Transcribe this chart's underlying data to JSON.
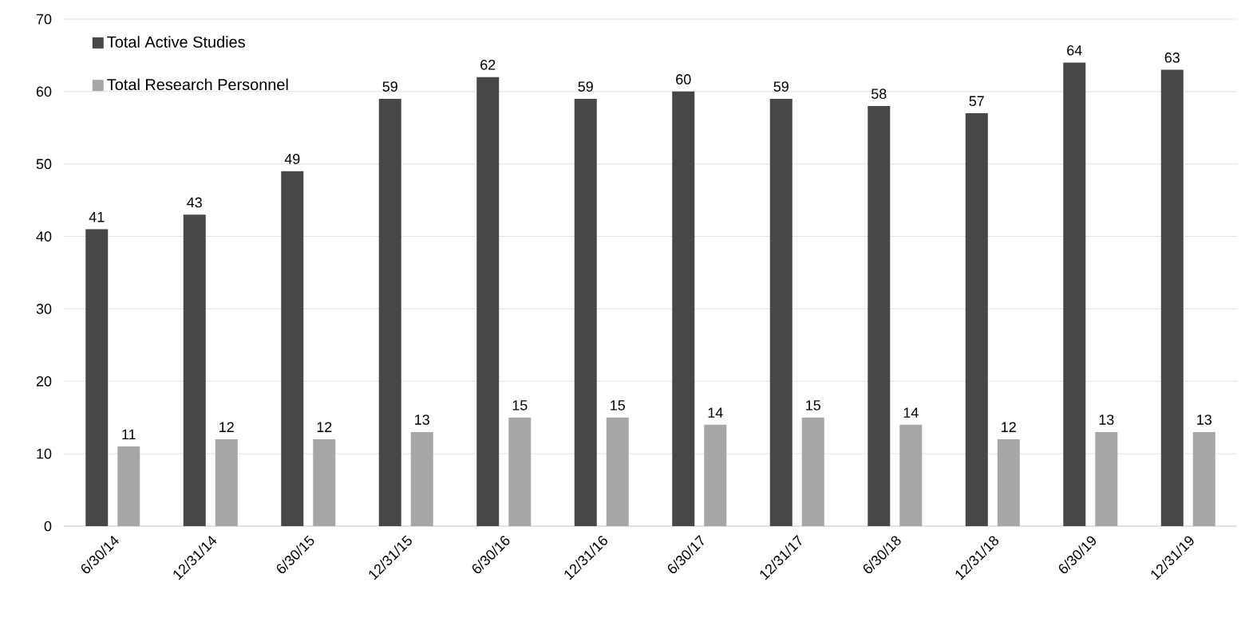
{
  "chart_data": {
    "type": "bar",
    "categories": [
      "6/30/14",
      "12/31/14",
      "6/30/15",
      "12/31/15",
      "6/30/16",
      "12/31/16",
      "6/30/17",
      "12/31/17",
      "6/30/18",
      "12/31/18",
      "6/30/19",
      "12/31/19"
    ],
    "series": [
      {
        "name": "Total Active Studies",
        "color": "#474747",
        "values": [
          41,
          43,
          49,
          59,
          62,
          59,
          60,
          59,
          58,
          57,
          64,
          63
        ]
      },
      {
        "name": "Total Research Personnel",
        "color": "#a6a6a6",
        "values": [
          11,
          12,
          12,
          13,
          15,
          15,
          14,
          15,
          14,
          12,
          13,
          13
        ]
      }
    ],
    "ylim": [
      0,
      70
    ],
    "yticks": [
      0,
      10,
      20,
      30,
      40,
      50,
      60,
      70
    ],
    "grid": "y",
    "legend": "top left",
    "data_labels": true
  }
}
